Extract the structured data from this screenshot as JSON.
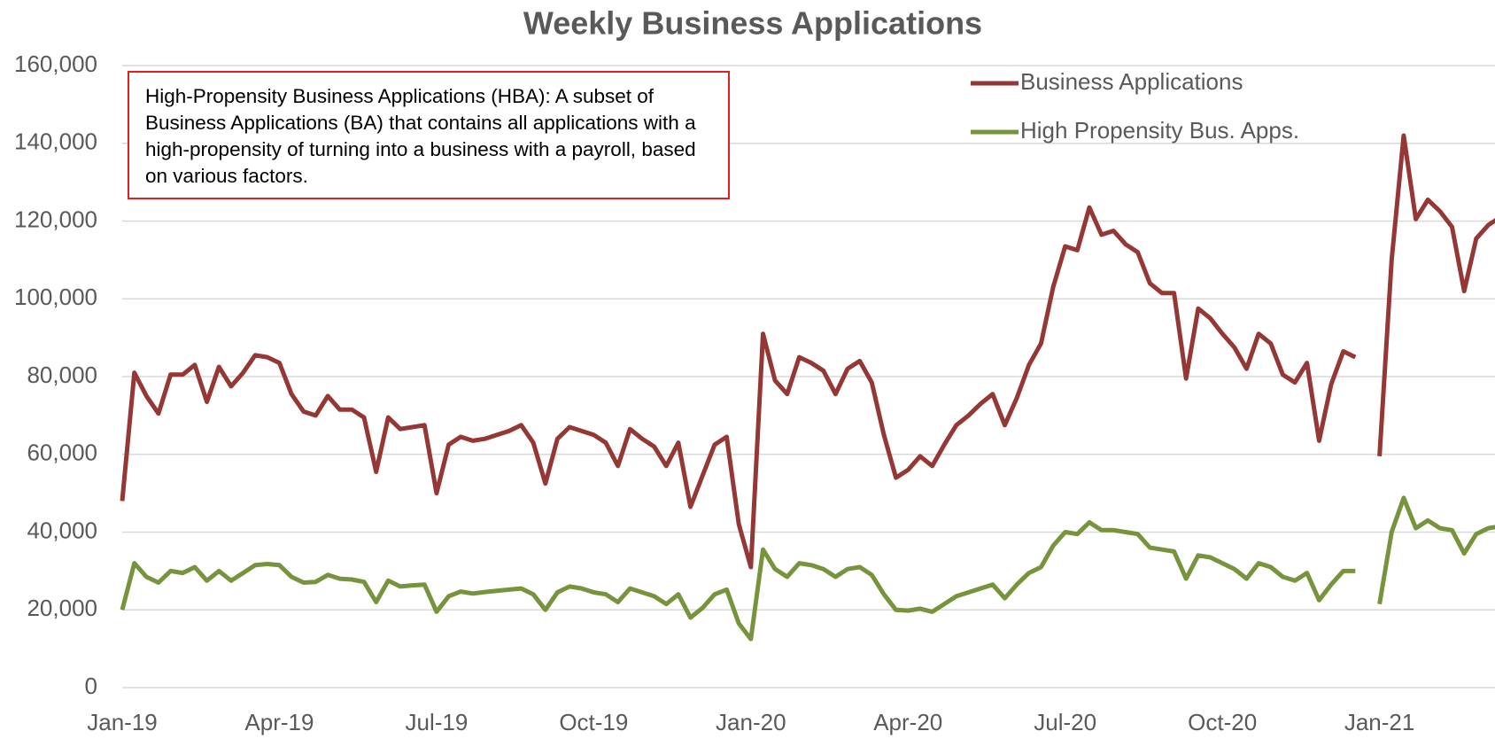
{
  "chart_data": {
    "type": "line",
    "title": "Weekly Business Applications",
    "annotation": "High-Propensity Business Applications (HBA): A subset of Business Applications (BA) that contains all applications with a high-propensity of turning into a business with a payroll, based on various factors.",
    "x": [
      0,
      1,
      2,
      3,
      4,
      5,
      6,
      7,
      8,
      9,
      10,
      11,
      12,
      13,
      14,
      15,
      16,
      17,
      18,
      19,
      20,
      21,
      22,
      23,
      24,
      25,
      26,
      27,
      28,
      29,
      30,
      31,
      32,
      33,
      34,
      35,
      36,
      37,
      38,
      39,
      40,
      41,
      42,
      43,
      44,
      45,
      46,
      47,
      48,
      49,
      50,
      51,
      52,
      53,
      54,
      55,
      56,
      57,
      58,
      59,
      60,
      61,
      62,
      63,
      64,
      65,
      66,
      67,
      68,
      69,
      70,
      71,
      72,
      73,
      74,
      75,
      76,
      77,
      78,
      79,
      80,
      81,
      82,
      83,
      84,
      85,
      86,
      87,
      88,
      89,
      90,
      91,
      92,
      93,
      94,
      95,
      96,
      97,
      98,
      99,
      100,
      101,
      102,
      103,
      104,
      105,
      106,
      107,
      108,
      109,
      110,
      111,
      112,
      113,
      114
    ],
    "series": [
      {
        "name": "Business Applications",
        "color": "#953735",
        "values": [
          48000,
          81000,
          75000,
          70500,
          80500,
          80500,
          83000,
          73500,
          82500,
          77500,
          81000,
          85500,
          85000,
          83500,
          75500,
          71000,
          70000,
          75000,
          71500,
          71500,
          69500,
          55500,
          69500,
          66500,
          67000,
          67500,
          50000,
          62500,
          64500,
          63500,
          64000,
          65000,
          66000,
          67500,
          63000,
          52500,
          64000,
          67000,
          66000,
          65000,
          63000,
          57000,
          66500,
          64000,
          62000,
          57000,
          63000,
          46500,
          54500,
          62500,
          64500,
          42000,
          31000,
          91000,
          79000,
          75500,
          85000,
          83500,
          81500,
          75500,
          82000,
          84000,
          78500,
          65000,
          54000,
          56000,
          59500,
          57000,
          62500,
          67500,
          70000,
          73000,
          75500,
          67500,
          74500,
          83000,
          88500,
          103000,
          113500,
          112500,
          123500,
          116500,
          117500,
          114000,
          112000,
          104000,
          101500,
          101500,
          79500,
          97500,
          95000,
          91000,
          87500,
          82000,
          91000,
          88500,
          80500,
          78500,
          83500,
          63500,
          78000,
          86500,
          85000,
          null,
          59500,
          110000,
          142000,
          120500,
          125500,
          122500,
          118500,
          102000,
          115500,
          119000,
          121000
        ]
      },
      {
        "name": "High Propensity Bus. Apps.",
        "color": "#77933c",
        "values": [
          20000,
          32000,
          28500,
          27000,
          30000,
          29500,
          31000,
          27500,
          30000,
          27500,
          29500,
          31500,
          31800,
          31500,
          28500,
          27000,
          27200,
          29000,
          28000,
          27800,
          27200,
          22000,
          27500,
          26000,
          26300,
          26500,
          19500,
          23500,
          24700,
          24200,
          24600,
          24900,
          25200,
          25500,
          24000,
          20000,
          24500,
          26000,
          25500,
          24500,
          24000,
          22000,
          25500,
          24500,
          23500,
          21500,
          24000,
          18000,
          20500,
          24000,
          25200,
          16500,
          12500,
          35500,
          30500,
          28500,
          32000,
          31500,
          30500,
          28500,
          30500,
          31000,
          29000,
          24000,
          20000,
          19800,
          20300,
          19500,
          21500,
          23500,
          24500,
          25500,
          26500,
          23000,
          26500,
          29500,
          31000,
          36500,
          40000,
          39500,
          42500,
          40500,
          40500,
          40000,
          39500,
          36000,
          35500,
          35000,
          28000,
          34000,
          33500,
          32000,
          30500,
          28000,
          32000,
          31000,
          28500,
          27500,
          29500,
          22500,
          26500,
          30000,
          30000,
          null,
          21500,
          40000,
          48800,
          41000,
          43000,
          41000,
          40500,
          34500,
          39500,
          41000,
          41500
        ]
      }
    ],
    "xlim": [
      0,
      114
    ],
    "xticks": [
      {
        "value": 0,
        "label": "Jan-19"
      },
      {
        "value": 13,
        "label": "Apr-19"
      },
      {
        "value": 26,
        "label": "Jul-19"
      },
      {
        "value": 39,
        "label": "Oct-19"
      },
      {
        "value": 52,
        "label": "Jan-20"
      },
      {
        "value": 65,
        "label": "Apr-20"
      },
      {
        "value": 78,
        "label": "Jul-20"
      },
      {
        "value": 91,
        "label": "Oct-20"
      },
      {
        "value": 104,
        "label": "Jan-21"
      }
    ],
    "ylim": [
      0,
      160000
    ],
    "yticks": [
      0,
      {
        "value": 20000,
        "label": "20,000"
      },
      {
        "value": 40000,
        "label": "40,000"
      },
      {
        "value": 60000,
        "label": "60,000"
      },
      {
        "value": 80000,
        "label": "80,000"
      },
      {
        "value": 100000,
        "label": "100,000"
      },
      {
        "value": 120000,
        "label": "120,000"
      },
      {
        "value": 140000,
        "label": "140,000"
      },
      {
        "value": 160000,
        "label": "160,000"
      }
    ],
    "grid": true,
    "legend": "top-right"
  }
}
